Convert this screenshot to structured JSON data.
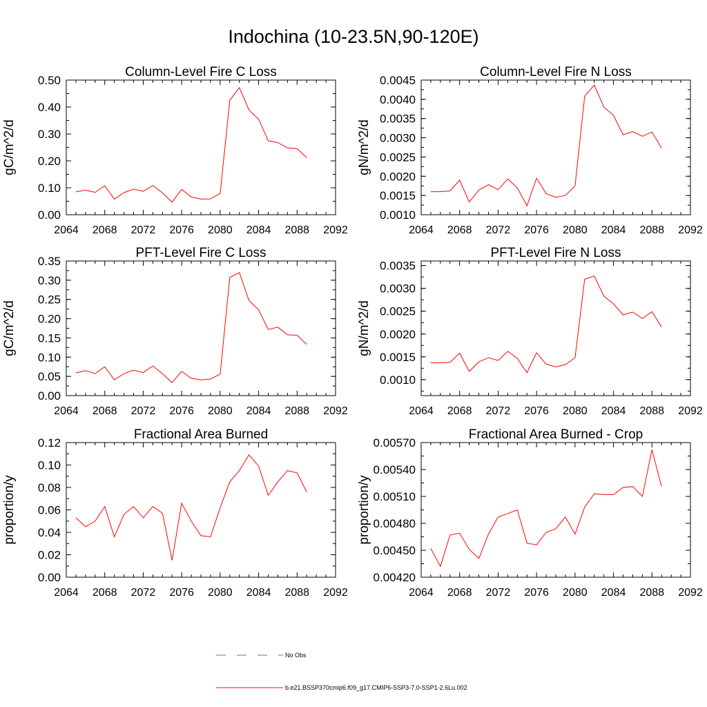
{
  "page": {
    "title": "Indochina (10-23.5N,90-120E)"
  },
  "legend": {
    "items": [
      {
        "label": "No Obs",
        "color": "#6a6ab4",
        "dash": true
      },
      {
        "label": "b.e21.BSSP370cmip6.f09_g17.CMIP6-SSP3-7.0-SSP1-2.6Lu.002",
        "color": "#ff0000",
        "dash": false
      }
    ]
  },
  "chart_data": [
    {
      "type": "line",
      "title": "Column-Level Fire C Loss",
      "ylabel": "gC/m^2/d",
      "xlim": [
        2064,
        2092
      ],
      "xticks": [
        "2064",
        "2068",
        "2072",
        "2076",
        "2080",
        "2084",
        "2088",
        "2092"
      ],
      "ylim": [
        0.0,
        0.5
      ],
      "yticks": [
        "0.00",
        "0.10",
        "0.20",
        "0.30",
        "0.40",
        "0.50"
      ],
      "grid": false,
      "x": [
        2065,
        2066,
        2067,
        2068,
        2069,
        2070,
        2071,
        2072,
        2073,
        2074,
        2075,
        2076,
        2077,
        2078,
        2079,
        2080,
        2081,
        2082,
        2083,
        2084,
        2085,
        2086,
        2087,
        2088,
        2089
      ],
      "series": [
        {
          "color": "#ff0000",
          "values": [
            0.085,
            0.091,
            0.083,
            0.108,
            0.058,
            0.082,
            0.095,
            0.087,
            0.109,
            0.081,
            0.047,
            0.094,
            0.066,
            0.058,
            0.059,
            0.079,
            0.425,
            0.472,
            0.389,
            0.355,
            0.275,
            0.268,
            0.248,
            0.245,
            0.212
          ]
        }
      ]
    },
    {
      "type": "line",
      "title": "Column-Level Fire N Loss",
      "ylabel": "gN/m^2/d",
      "xlim": [
        2064,
        2092
      ],
      "xticks": [
        "2064",
        "2068",
        "2072",
        "2076",
        "2080",
        "2084",
        "2088",
        "2092"
      ],
      "ylim": [
        0.001,
        0.0045
      ],
      "yticks": [
        "0.0010",
        "0.0015",
        "0.0020",
        "0.0025",
        "0.0030",
        "0.0035",
        "0.0040",
        "0.0045"
      ],
      "grid": false,
      "x": [
        2065,
        2066,
        2067,
        2068,
        2069,
        2070,
        2071,
        2072,
        2073,
        2074,
        2075,
        2076,
        2077,
        2078,
        2079,
        2080,
        2081,
        2082,
        2083,
        2084,
        2085,
        2086,
        2087,
        2088,
        2089
      ],
      "series": [
        {
          "color": "#ff0000",
          "values": [
            0.0016,
            0.0016,
            0.00162,
            0.0019,
            0.00133,
            0.00164,
            0.00178,
            0.00165,
            0.00193,
            0.0017,
            0.00123,
            0.00195,
            0.00155,
            0.00145,
            0.0015,
            0.00175,
            0.00408,
            0.00437,
            0.0038,
            0.00358,
            0.00308,
            0.00316,
            0.00304,
            0.00315,
            0.00273
          ]
        }
      ]
    },
    {
      "type": "line",
      "title": "PFT-Level Fire C Loss",
      "ylabel": "gC/m^2/d",
      "xlim": [
        2064,
        2092
      ],
      "xticks": [
        "2064",
        "2068",
        "2072",
        "2076",
        "2080",
        "2084",
        "2088",
        "2092"
      ],
      "ylim": [
        0.0,
        0.35
      ],
      "yticks": [
        "0.00",
        "0.05",
        "0.10",
        "0.15",
        "0.20",
        "0.25",
        "0.30",
        "0.35"
      ],
      "grid": false,
      "x": [
        2065,
        2066,
        2067,
        2068,
        2069,
        2070,
        2071,
        2072,
        2073,
        2074,
        2075,
        2076,
        2077,
        2078,
        2079,
        2080,
        2081,
        2082,
        2083,
        2084,
        2085,
        2086,
        2087,
        2088,
        2089
      ],
      "series": [
        {
          "color": "#ff0000",
          "values": [
            0.059,
            0.065,
            0.057,
            0.075,
            0.041,
            0.057,
            0.066,
            0.06,
            0.077,
            0.057,
            0.034,
            0.063,
            0.045,
            0.041,
            0.043,
            0.056,
            0.307,
            0.32,
            0.247,
            0.223,
            0.172,
            0.178,
            0.158,
            0.157,
            0.133
          ]
        }
      ]
    },
    {
      "type": "line",
      "title": "PFT-Level Fire N Loss",
      "ylabel": "gN/m^2/d",
      "xlim": [
        2064,
        2092
      ],
      "xticks": [
        "2064",
        "2068",
        "2072",
        "2076",
        "2080",
        "2084",
        "2088",
        "2092"
      ],
      "ylim": [
        0.00065,
        0.0036
      ],
      "yticks": [
        "0.0010",
        "0.0015",
        "0.0020",
        "0.0025",
        "0.0030",
        "0.0035"
      ],
      "grid": false,
      "x": [
        2065,
        2066,
        2067,
        2068,
        2069,
        2070,
        2071,
        2072,
        2073,
        2074,
        2075,
        2076,
        2077,
        2078,
        2079,
        2080,
        2081,
        2082,
        2083,
        2084,
        2085,
        2086,
        2087,
        2088,
        2089
      ],
      "series": [
        {
          "color": "#ff0000",
          "values": [
            0.00137,
            0.00137,
            0.00138,
            0.00158,
            0.00118,
            0.00139,
            0.00148,
            0.00142,
            0.00162,
            0.00147,
            0.00115,
            0.00159,
            0.00134,
            0.00128,
            0.00133,
            0.00148,
            0.0032,
            0.00327,
            0.00283,
            0.00266,
            0.00242,
            0.00248,
            0.00234,
            0.00249,
            0.00215
          ]
        }
      ]
    },
    {
      "type": "line",
      "title": "Fractional Area Burned",
      "ylabel": "proportion/y",
      "xlim": [
        2064,
        2092
      ],
      "xticks": [
        "2064",
        "2068",
        "2072",
        "2076",
        "2080",
        "2084",
        "2088",
        "2092"
      ],
      "ylim": [
        0.0,
        0.12
      ],
      "yticks": [
        "0.00",
        "0.02",
        "0.04",
        "0.06",
        "0.08",
        "0.10",
        "0.12"
      ],
      "grid": false,
      "x": [
        2065,
        2066,
        2067,
        2068,
        2069,
        2070,
        2071,
        2072,
        2073,
        2074,
        2075,
        2076,
        2077,
        2078,
        2079,
        2080,
        2081,
        2082,
        2083,
        2084,
        2085,
        2086,
        2087,
        2088,
        2089
      ],
      "series": [
        {
          "color": "#ff0000",
          "values": [
            0.053,
            0.045,
            0.05,
            0.063,
            0.036,
            0.056,
            0.063,
            0.053,
            0.063,
            0.057,
            0.015,
            0.066,
            0.05,
            0.037,
            0.036,
            0.062,
            0.085,
            0.095,
            0.109,
            0.099,
            0.073,
            0.085,
            0.095,
            0.093,
            0.076
          ]
        }
      ]
    },
    {
      "type": "line",
      "title": "Fractional Area Burned - Crop",
      "ylabel": "proportion/y",
      "xlim": [
        2064,
        2092
      ],
      "xticks": [
        "2064",
        "2068",
        "2072",
        "2076",
        "2080",
        "2084",
        "2088",
        "2092"
      ],
      "ylim": [
        0.0042,
        0.0057
      ],
      "yticks": [
        "0.00420",
        "0.00450",
        "0.00480",
        "0.00510",
        "0.00540",
        "0.00570"
      ],
      "grid": false,
      "x": [
        2065,
        2066,
        2067,
        2068,
        2069,
        2070,
        2071,
        2072,
        2073,
        2074,
        2075,
        2076,
        2077,
        2078,
        2079,
        2080,
        2081,
        2082,
        2083,
        2084,
        2085,
        2086,
        2087,
        2088,
        2089
      ],
      "series": [
        {
          "color": "#ff0000",
          "values": [
            0.00452,
            0.00432,
            0.00467,
            0.00469,
            0.00451,
            0.00441,
            0.00468,
            0.00487,
            0.00491,
            0.00495,
            0.00458,
            0.00456,
            0.0047,
            0.00474,
            0.00487,
            0.00468,
            0.00498,
            0.00513,
            0.00512,
            0.00512,
            0.0052,
            0.00521,
            0.0051,
            0.00562,
            0.00521
          ]
        }
      ]
    }
  ]
}
